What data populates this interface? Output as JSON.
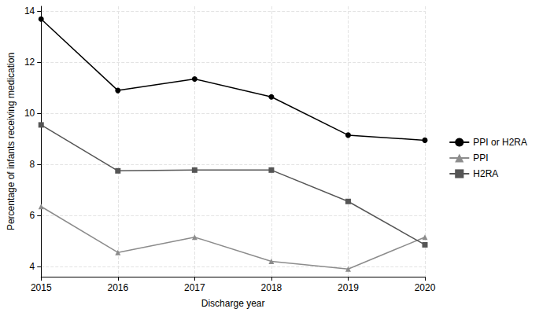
{
  "chart_data": {
    "type": "line",
    "x_label": "Discharge year",
    "y_label": "Percentage of infants receiving medication",
    "x": [
      2015,
      2016,
      2017,
      2018,
      2019,
      2020
    ],
    "xlim": [
      2015,
      2020
    ],
    "xticks": [
      2015,
      2016,
      2017,
      2018,
      2019,
      2020
    ],
    "ylim": [
      3.6,
      14.2
    ],
    "yticks": [
      4,
      6,
      8,
      10,
      12,
      14
    ],
    "grid": true,
    "legend": "right",
    "series": [
      {
        "name": "PPI or H2RA",
        "color": "#000000",
        "marker": "circle",
        "values": [
          13.7,
          10.9,
          11.35,
          10.65,
          9.15,
          8.95
        ]
      },
      {
        "name": "PPI",
        "color": "#8c8c8c",
        "marker": "triangle",
        "values": [
          6.35,
          4.55,
          5.15,
          4.2,
          3.9,
          5.15
        ]
      },
      {
        "name": "H2RA",
        "color": "#555555",
        "marker": "square",
        "values": [
          9.55,
          7.75,
          7.78,
          7.78,
          6.55,
          4.85
        ]
      }
    ]
  }
}
